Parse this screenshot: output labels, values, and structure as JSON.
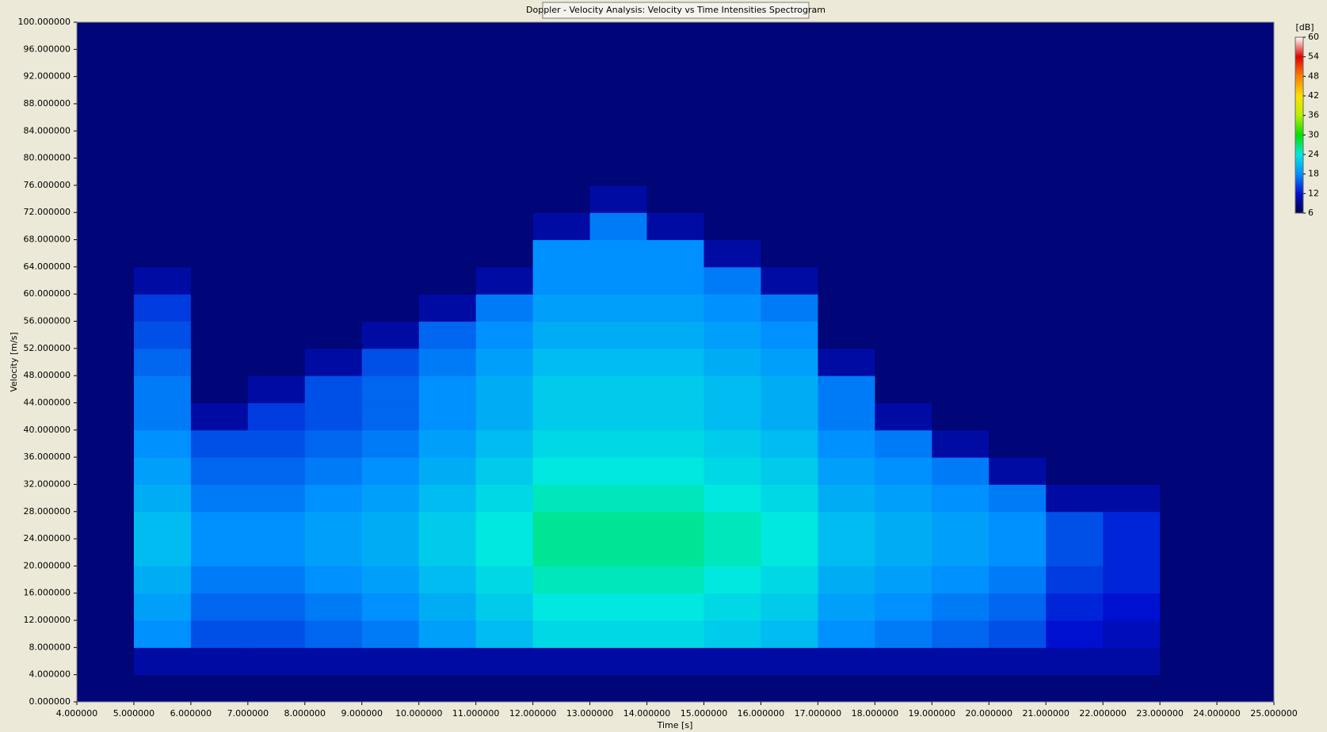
{
  "chart_data": {
    "type": "heatmap",
    "title": "Doppler - Velocity Analysis: Velocity vs Time Intensities Spectrogram",
    "x_label": "Time [s]",
    "y_label": "Velocity [m/s]",
    "colorbar_label": "[dB]",
    "x": [
      4.5,
      5.5,
      6.5,
      7.5,
      8.5,
      9.5,
      10.5,
      11.5,
      12.5,
      13.5,
      14.5,
      15.5,
      16.5,
      17.5,
      18.5,
      19.5,
      20.5,
      21.5,
      22.5,
      23.5,
      24.5
    ],
    "y": [
      2,
      6,
      10,
      14,
      18,
      22,
      26,
      30,
      34,
      38,
      42,
      46,
      50,
      54,
      58,
      62,
      66,
      70,
      74,
      78,
      82,
      86,
      90,
      94,
      98
    ],
    "values": [
      [
        8,
        8,
        8,
        8,
        8,
        8,
        8,
        8,
        8,
        8,
        8,
        8,
        8,
        8,
        8,
        8,
        8,
        8,
        8,
        8,
        8
      ],
      [
        8,
        10,
        10,
        10,
        10,
        10,
        10,
        10,
        10,
        10,
        10,
        10,
        10,
        10,
        10,
        10,
        10,
        10,
        10,
        8,
        8
      ],
      [
        8,
        18,
        15,
        15,
        16,
        17,
        19,
        21,
        23,
        23,
        23,
        22,
        21,
        18,
        17,
        16,
        15,
        12,
        11,
        8,
        8
      ],
      [
        8,
        19,
        16,
        16,
        17,
        18,
        20,
        22,
        24,
        24,
        24,
        23,
        22,
        19,
        18,
        17,
        16,
        13,
        12,
        8,
        8
      ],
      [
        8,
        20,
        17,
        17,
        18,
        19,
        21,
        23,
        25,
        25,
        25,
        24,
        23,
        20,
        19,
        18,
        17,
        14,
        13,
        8,
        8
      ],
      [
        8,
        21,
        18,
        18,
        19,
        20,
        22,
        24,
        26,
        26,
        26,
        25,
        24,
        21,
        20,
        19,
        18,
        15,
        13,
        8,
        8
      ],
      [
        8,
        21,
        18,
        18,
        19,
        20,
        22,
        24,
        26,
        26,
        26,
        25,
        24,
        21,
        20,
        19,
        18,
        15,
        13,
        8,
        8
      ],
      [
        8,
        20,
        17,
        17,
        18,
        19,
        21,
        23,
        25,
        25,
        25,
        24,
        23,
        20,
        19,
        18,
        17,
        10,
        10,
        8,
        8
      ],
      [
        8,
        19,
        16,
        16,
        17,
        18,
        20,
        22,
        24,
        24,
        24,
        23,
        22,
        19,
        18,
        17,
        10,
        8,
        8,
        8,
        8
      ],
      [
        8,
        18,
        15,
        15,
        16,
        17,
        19,
        21,
        23,
        23,
        23,
        22,
        21,
        18,
        17,
        10,
        8,
        8,
        8,
        8,
        8
      ],
      [
        8,
        17,
        10,
        14,
        15,
        16,
        18,
        20,
        22,
        22,
        22,
        21,
        20,
        17,
        10,
        8,
        8,
        8,
        8,
        8,
        8
      ],
      [
        8,
        17,
        8,
        10,
        15,
        16,
        18,
        20,
        22,
        22,
        22,
        21,
        20,
        17,
        8,
        8,
        8,
        8,
        8,
        8,
        8
      ],
      [
        8,
        16,
        8,
        8,
        10,
        15,
        17,
        19,
        21,
        21,
        21,
        20,
        19,
        10,
        8,
        8,
        8,
        8,
        8,
        8,
        8
      ],
      [
        8,
        15,
        8,
        8,
        8,
        10,
        16,
        18,
        20,
        20,
        20,
        19,
        18,
        8,
        8,
        8,
        8,
        8,
        8,
        8,
        8
      ],
      [
        8,
        14,
        8,
        8,
        8,
        8,
        10,
        17,
        19,
        19,
        19,
        18,
        17,
        8,
        8,
        8,
        8,
        8,
        8,
        8,
        8
      ],
      [
        8,
        10,
        8,
        8,
        8,
        8,
        8,
        10,
        18,
        18,
        18,
        17,
        10,
        8,
        8,
        8,
        8,
        8,
        8,
        8,
        8
      ],
      [
        8,
        8,
        8,
        8,
        8,
        8,
        8,
        8,
        18,
        18,
        18,
        10,
        8,
        8,
        8,
        8,
        8,
        8,
        8,
        8,
        8
      ],
      [
        8,
        8,
        8,
        8,
        8,
        8,
        8,
        8,
        10,
        17,
        10,
        8,
        8,
        8,
        8,
        8,
        8,
        8,
        8,
        8,
        8
      ],
      [
        8,
        8,
        8,
        8,
        8,
        8,
        8,
        8,
        8,
        10,
        8,
        8,
        8,
        8,
        8,
        8,
        8,
        8,
        8,
        8,
        8
      ],
      [
        8,
        8,
        8,
        8,
        8,
        8,
        8,
        8,
        8,
        8,
        8,
        8,
        8,
        8,
        8,
        8,
        8,
        8,
        8,
        8,
        8
      ],
      [
        8,
        8,
        8,
        8,
        8,
        8,
        8,
        8,
        8,
        8,
        8,
        8,
        8,
        8,
        8,
        8,
        8,
        8,
        8,
        8,
        8
      ],
      [
        8,
        8,
        8,
        8,
        8,
        8,
        8,
        8,
        8,
        8,
        8,
        8,
        8,
        8,
        8,
        8,
        8,
        8,
        8,
        8,
        8
      ],
      [
        8,
        8,
        8,
        8,
        8,
        8,
        8,
        8,
        8,
        8,
        8,
        8,
        8,
        8,
        8,
        8,
        8,
        8,
        8,
        8,
        8
      ],
      [
        8,
        8,
        8,
        8,
        8,
        8,
        8,
        8,
        8,
        8,
        8,
        8,
        8,
        8,
        8,
        8,
        8,
        8,
        8,
        8,
        8
      ],
      [
        8,
        8,
        8,
        8,
        8,
        8,
        8,
        8,
        8,
        8,
        8,
        8,
        8,
        8,
        8,
        8,
        8,
        8,
        8,
        8,
        8
      ]
    ],
    "xlim": [
      4,
      25
    ],
    "xticks": [
      {
        "value": 4,
        "label": "4.000000"
      },
      {
        "value": 5,
        "label": "5.000000"
      },
      {
        "value": 6,
        "label": "6.000000"
      },
      {
        "value": 7,
        "label": "7.000000"
      },
      {
        "value": 8,
        "label": "8.000000"
      },
      {
        "value": 9,
        "label": "9.000000"
      },
      {
        "value": 10,
        "label": "10.000000"
      },
      {
        "value": 11,
        "label": "11.000000"
      },
      {
        "value": 12,
        "label": "12.000000"
      },
      {
        "value": 13,
        "label": "13.000000"
      },
      {
        "value": 14,
        "label": "14.000000"
      },
      {
        "value": 15,
        "label": "15.000000"
      },
      {
        "value": 16,
        "label": "16.000000"
      },
      {
        "value": 17,
        "label": "17.000000"
      },
      {
        "value": 18,
        "label": "18.000000"
      },
      {
        "value": 19,
        "label": "19.000000"
      },
      {
        "value": 20,
        "label": "20.000000"
      },
      {
        "value": 21,
        "label": "21.000000"
      },
      {
        "value": 22,
        "label": "22.000000"
      },
      {
        "value": 23,
        "label": "23.000000"
      },
      {
        "value": 24,
        "label": "24.000000"
      },
      {
        "value": 25,
        "label": "25.000000"
      }
    ],
    "ylim": [
      0,
      100
    ],
    "yticks": [
      {
        "value": 0,
        "label": "0.000000"
      },
      {
        "value": 4,
        "label": "4.000000"
      },
      {
        "value": 8,
        "label": "8.000000"
      },
      {
        "value": 12,
        "label": "12.000000"
      },
      {
        "value": 16,
        "label": "16.000000"
      },
      {
        "value": 20,
        "label": "20.000000"
      },
      {
        "value": 24,
        "label": "24.000000"
      },
      {
        "value": 28,
        "label": "28.000000"
      },
      {
        "value": 32,
        "label": "32.000000"
      },
      {
        "value": 36,
        "label": "36.000000"
      },
      {
        "value": 40,
        "label": "40.000000"
      },
      {
        "value": 44,
        "label": "44.000000"
      },
      {
        "value": 48,
        "label": "48.000000"
      },
      {
        "value": 52,
        "label": "52.000000"
      },
      {
        "value": 56,
        "label": "56.000000"
      },
      {
        "value": 60,
        "label": "60.000000"
      },
      {
        "value": 64,
        "label": "64.000000"
      },
      {
        "value": 68,
        "label": "68.000000"
      },
      {
        "value": 72,
        "label": "72.000000"
      },
      {
        "value": 76,
        "label": "76.000000"
      },
      {
        "value": 80,
        "label": "80.000000"
      },
      {
        "value": 84,
        "label": "84.000000"
      },
      {
        "value": 88,
        "label": "88.000000"
      },
      {
        "value": 92,
        "label": "92.000000"
      },
      {
        "value": 96,
        "label": "96.000000"
      },
      {
        "value": 100,
        "label": "100.000000"
      }
    ],
    "zlim": [
      6,
      60
    ],
    "zticks": [
      6,
      12,
      18,
      24,
      30,
      36,
      42,
      48,
      54,
      60
    ],
    "colorscale": [
      "#00004a",
      "#0010d0",
      "#0090ff",
      "#00e8e0",
      "#00e000",
      "#b8f000",
      "#ffe000",
      "#ff8000",
      "#e00000",
      "#ffffff"
    ]
  }
}
